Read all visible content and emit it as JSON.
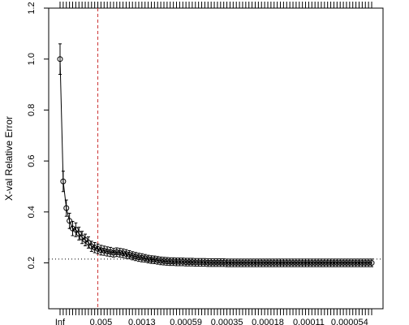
{
  "chart_data": {
    "type": "line",
    "title": "",
    "xlabel": "",
    "ylabel": "X-val Relative Error",
    "ylim": [
      0.02,
      1.2
    ],
    "y_ticks": [
      0.2,
      0.4,
      0.6,
      0.8,
      1.0,
      1.2
    ],
    "y_tick_labels": [
      "0.2",
      "0.4",
      "0.6",
      "0.8",
      "1.0",
      "1.2"
    ],
    "x_ticks_shown": [
      "Inf",
      "0.005",
      "0.0013",
      "0.00059",
      "0.00035",
      "0.00018",
      "0.00011",
      "0.000054"
    ],
    "num_points": 100,
    "y": [
      1.0,
      0.52,
      0.415,
      0.365,
      0.335,
      0.33,
      0.315,
      0.3,
      0.29,
      0.28,
      0.265,
      0.26,
      0.255,
      0.25,
      0.248,
      0.245,
      0.243,
      0.24,
      0.242,
      0.24,
      0.238,
      0.235,
      0.232,
      0.228,
      0.225,
      0.222,
      0.22,
      0.218,
      0.215,
      0.213,
      0.212,
      0.21,
      0.208,
      0.207,
      0.206,
      0.205,
      0.205,
      0.204,
      0.204,
      0.204,
      0.203,
      0.203,
      0.203,
      0.202,
      0.202,
      0.202,
      0.202,
      0.201,
      0.201,
      0.201,
      0.201,
      0.201,
      0.201,
      0.2,
      0.2,
      0.2,
      0.2,
      0.2,
      0.2,
      0.2,
      0.2,
      0.2,
      0.2,
      0.2,
      0.2,
      0.2,
      0.2,
      0.2,
      0.2,
      0.2,
      0.2,
      0.2,
      0.2,
      0.2,
      0.2,
      0.2,
      0.2,
      0.2,
      0.2,
      0.2,
      0.2,
      0.2,
      0.2,
      0.2,
      0.2,
      0.2,
      0.2,
      0.2,
      0.2,
      0.2,
      0.2,
      0.2,
      0.2,
      0.2,
      0.2,
      0.2,
      0.2,
      0.2,
      0.2,
      0.2
    ],
    "error_bar": [
      0.06,
      0.04,
      0.032,
      0.03,
      0.028,
      0.027,
      0.025,
      0.024,
      0.023,
      0.022,
      0.02,
      0.02,
      0.019,
      0.019,
      0.018,
      0.018,
      0.018,
      0.017,
      0.017,
      0.017,
      0.017,
      0.017,
      0.016,
      0.016,
      0.016,
      0.016,
      0.016,
      0.015,
      0.015,
      0.015,
      0.015,
      0.015,
      0.015,
      0.015,
      0.015,
      0.015,
      0.015,
      0.015,
      0.015,
      0.015,
      0.015,
      0.015,
      0.015,
      0.015,
      0.015,
      0.015,
      0.015,
      0.015,
      0.015,
      0.015,
      0.015,
      0.015,
      0.015,
      0.015,
      0.015,
      0.015,
      0.015,
      0.015,
      0.015,
      0.015,
      0.015,
      0.015,
      0.015,
      0.015,
      0.015,
      0.015,
      0.015,
      0.015,
      0.015,
      0.015,
      0.015,
      0.015,
      0.015,
      0.015,
      0.015,
      0.015,
      0.015,
      0.015,
      0.015,
      0.015,
      0.015,
      0.015,
      0.015,
      0.015,
      0.015,
      0.015,
      0.015,
      0.015,
      0.015,
      0.015,
      0.015,
      0.015,
      0.015,
      0.015,
      0.015,
      0.015,
      0.015,
      0.015,
      0.015,
      0.015
    ],
    "reference_line_y": 0.215,
    "selected_index": 12,
    "colors": {
      "series": "#000000",
      "selected_line": "#cc3333",
      "reference_line": "#000000"
    },
    "grid": false,
    "legend": "none"
  }
}
